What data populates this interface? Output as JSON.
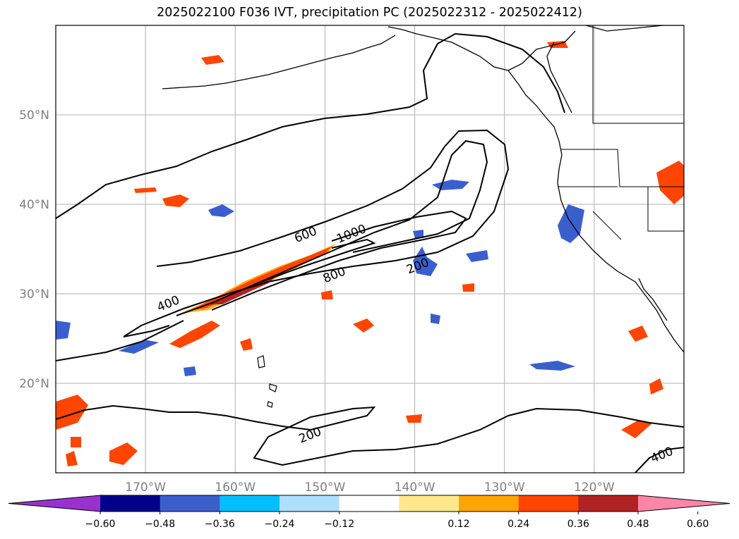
{
  "title": "2025022100 F036 IVT, precipitation PC (2025022312 - 2025022412)",
  "map": {
    "projection": "PlateCarree",
    "lon_range": [
      -180,
      -110
    ],
    "lat_range": [
      10,
      60
    ],
    "gridlines": true,
    "lat_ticks": [
      {
        "value": 20,
        "label": "20°N"
      },
      {
        "value": 30,
        "label": "30°N"
      },
      {
        "value": 40,
        "label": "40°N"
      },
      {
        "value": 50,
        "label": "50°N"
      }
    ],
    "lon_ticks": [
      {
        "value": -170,
        "label": "170°W"
      },
      {
        "value": -160,
        "label": "160°W"
      },
      {
        "value": -150,
        "label": "150°W"
      },
      {
        "value": -140,
        "label": "140°W"
      },
      {
        "value": -130,
        "label": "130°W"
      },
      {
        "value": -120,
        "label": "120°W"
      }
    ],
    "contour_labels": [
      {
        "text": "200",
        "lon": -139.5,
        "lat": 32.7
      },
      {
        "text": "200",
        "lon": -151.5,
        "lat": 13.8
      },
      {
        "text": "400",
        "lon": -167.3,
        "lat": 28.5
      },
      {
        "text": "400",
        "lon": -112.3,
        "lat": 11.6
      },
      {
        "text": "600",
        "lon": -152.0,
        "lat": 36.2
      },
      {
        "text": "800",
        "lon": -148.8,
        "lat": 31.7
      },
      {
        "text": "1000",
        "lon": -146.9,
        "lat": 36.3
      }
    ]
  },
  "colorbar": {
    "ticks": [
      "−0.60",
      "−0.48",
      "−0.36",
      "−0.24",
      "−0.12",
      "0.12",
      "0.24",
      "0.36",
      "0.48",
      "0.60"
    ],
    "colors": [
      "#9932CC",
      "#00008B",
      "#3A5FCD",
      "#00BFFF",
      "#ADDFFF",
      "#FFFFFF",
      "#FFE98A",
      "#FFA500",
      "#FF4500",
      "#B22222",
      "#FF85A8"
    ]
  }
}
